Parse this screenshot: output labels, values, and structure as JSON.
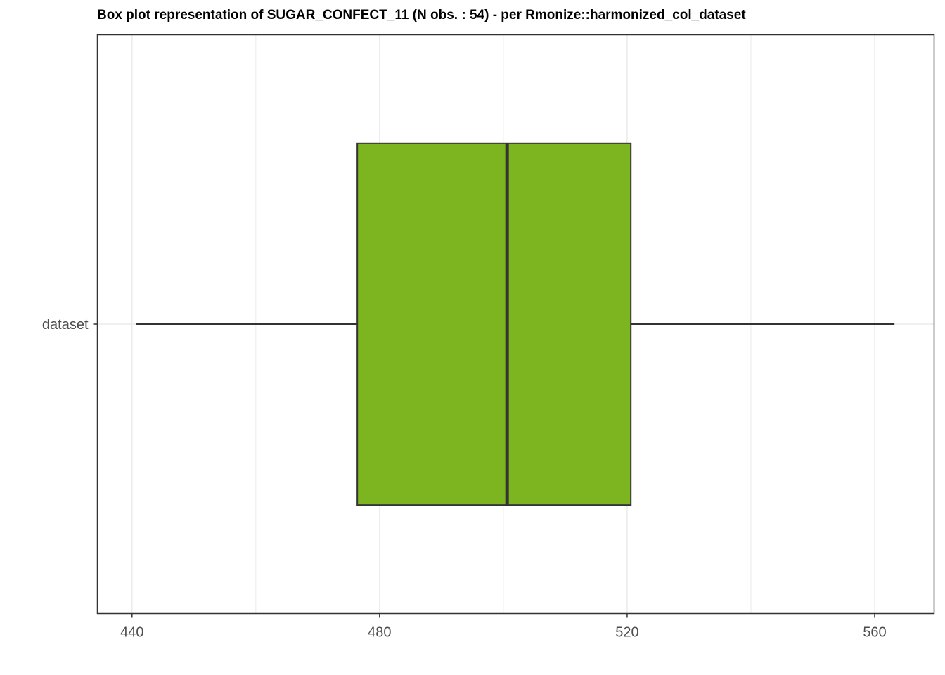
{
  "chart_data": {
    "type": "box",
    "title": "Box plot representation of SUGAR_CONFECT_11 (N obs. : 54) - per Rmonize::harmonized_col_dataset",
    "xlabel": "",
    "ylabel": "",
    "categories": [
      "dataset"
    ],
    "x_ticks": [
      440,
      480,
      520,
      560
    ],
    "x_minor_ticks": [
      460,
      500,
      540
    ],
    "xlim": [
      434.4,
      569.6
    ],
    "boxes": [
      {
        "category": "dataset",
        "whisker_low": 440.6,
        "q1": 476.4,
        "median": 500.6,
        "q3": 520.6,
        "whisker_high": 563.2
      }
    ],
    "grid": true,
    "legend": "none"
  },
  "colors": {
    "box_fill": "#7cb51f",
    "box_stroke": "#333333",
    "grid": "#ebebeb",
    "panel_border": "#333333",
    "tick_text": "#4d4d4d"
  }
}
